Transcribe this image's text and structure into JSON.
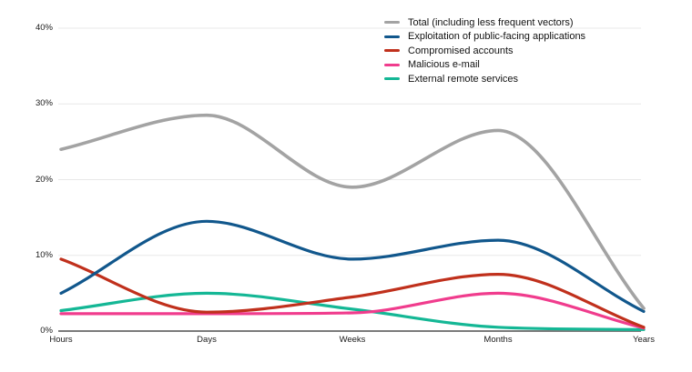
{
  "chart_data": {
    "type": "line",
    "title": "",
    "xlabel": "",
    "ylabel": "",
    "ylim": [
      0,
      40
    ],
    "grid": true,
    "legend_position": "top-right",
    "x_ticks": [
      "Hours",
      "Days",
      "Weeks",
      "Months",
      "Years"
    ],
    "y_ticks": [
      {
        "label": "40%",
        "value": 40
      },
      {
        "label": "30%",
        "value": 30
      },
      {
        "label": "20%",
        "value": 20
      },
      {
        "label": "10%",
        "value": 10
      },
      {
        "label": "0%",
        "value": 0
      }
    ],
    "series": [
      {
        "name": "Total (including less frequent vectors)",
        "color": "#a3a3a3",
        "values": [
          24,
          28.5,
          19,
          26.5,
          3
        ]
      },
      {
        "name": "Exploitation of public-facing applications",
        "color": "#11578c",
        "values": [
          5,
          14.5,
          9.5,
          12,
          2.6
        ]
      },
      {
        "name": "Compromised accounts",
        "color": "#c0301c",
        "values": [
          9.5,
          2.5,
          4.5,
          7.5,
          0.5
        ]
      },
      {
        "name": "Malicious e-mail",
        "color": "#f03c8d",
        "values": [
          2.3,
          2.3,
          2.4,
          5,
          0.4
        ]
      },
      {
        "name": "External remote services",
        "color": "#14b795",
        "values": [
          2.7,
          5,
          2.9,
          0.5,
          0.2
        ]
      }
    ],
    "colors": {
      "grid": "#e8e8e8",
      "axis": "#7b7b7b",
      "text": "#1a1a1a",
      "background": "#ffffff"
    }
  }
}
